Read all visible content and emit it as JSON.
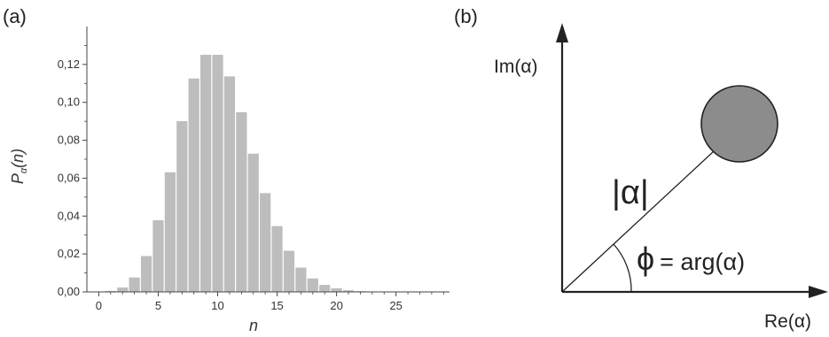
{
  "panels": {
    "a_label": "(a)",
    "b_label": "(b)"
  },
  "chart_data": {
    "type": "bar",
    "xlabel": "n",
    "ylabel": "P",
    "ylabel_sub": "α",
    "ylabel_arg": "(n)",
    "xlim": [
      -1,
      29.5
    ],
    "ylim": [
      0,
      0.14
    ],
    "xticks": [
      0,
      5,
      10,
      15,
      20,
      25
    ],
    "xtick_labels": [
      "0",
      "5",
      "10",
      "15",
      "20",
      "25"
    ],
    "yticks": [
      0,
      0.02,
      0.04,
      0.06,
      0.08,
      0.1,
      0.12
    ],
    "ytick_labels": [
      "0,00",
      "0,02",
      "0,04",
      "0,06",
      "0,08",
      "0,10",
      "0,12"
    ],
    "bar_color": "#bdbdbd",
    "x": [
      0,
      1,
      2,
      3,
      4,
      5,
      6,
      7,
      8,
      9,
      10,
      11,
      12,
      13,
      14,
      15,
      16,
      17,
      18,
      19,
      20,
      21,
      22,
      23,
      24,
      25,
      26,
      27,
      28,
      29
    ],
    "values": [
      5e-05,
      0.0005,
      0.0023,
      0.0076,
      0.0189,
      0.0378,
      0.0631,
      0.0901,
      0.1126,
      0.1251,
      0.1251,
      0.1137,
      0.0948,
      0.0729,
      0.0521,
      0.0347,
      0.0217,
      0.0128,
      0.0071,
      0.0037,
      0.0019,
      0.0009,
      0.0004,
      0.0002,
      0.0001,
      4e-05,
      2e-05,
      1e-05,
      0.0,
      0.0
    ]
  },
  "phasor": {
    "im_label": "Im(α)",
    "re_label": "Re(α)",
    "modulus_label": "|α|",
    "phase_symbol": "ϕ",
    "phase_rest": "= arg(α)",
    "circle_color": "#8c8c8c"
  }
}
